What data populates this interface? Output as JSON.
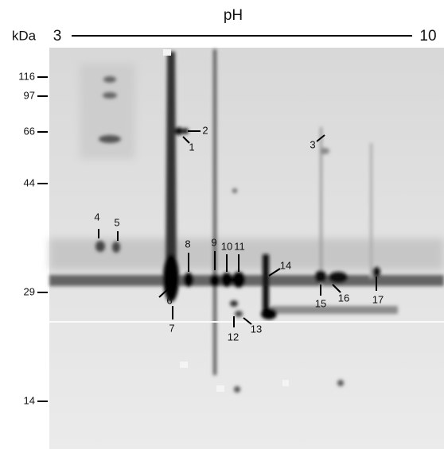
{
  "header": {
    "title": "pH",
    "left": "3",
    "right": "10"
  },
  "axis": {
    "unit": "kDa",
    "markers": [
      116,
      97,
      66,
      44,
      29,
      14
    ]
  },
  "spots": [
    1,
    2,
    3,
    4,
    5,
    6,
    7,
    8,
    9,
    10,
    11,
    12,
    13,
    14,
    15,
    16,
    17
  ]
}
